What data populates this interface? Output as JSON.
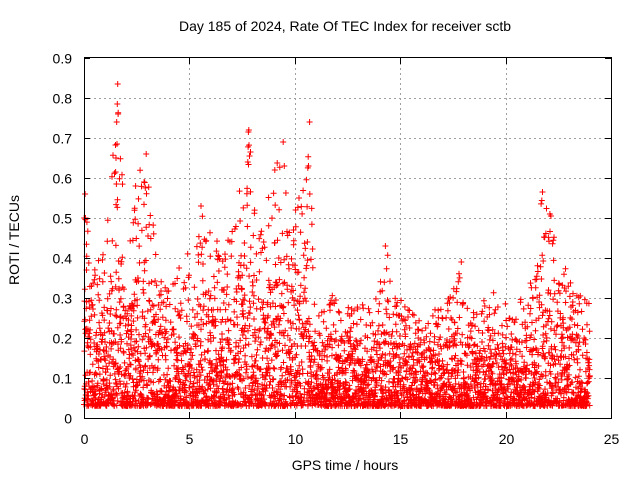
{
  "chart_data": {
    "type": "scatter",
    "title": "Day 185 of 2024, Rate Of TEC Index for receiver sctb",
    "xlabel": "GPS time / hours",
    "ylabel": "ROTI / TECUs",
    "xlim": [
      0,
      25
    ],
    "ylim": [
      0,
      0.9
    ],
    "x_ticks": [
      0,
      5,
      10,
      15,
      20,
      25
    ],
    "y_ticks": [
      0,
      0.1,
      0.2,
      0.3,
      0.4,
      0.5,
      0.6,
      0.7,
      0.8,
      0.9
    ],
    "x_tick_labels": [
      "0",
      "5",
      "10",
      "15",
      "20",
      "25"
    ],
    "y_tick_labels": [
      "0",
      "0.1",
      "0.2",
      "0.3",
      "0.4",
      "0.5",
      "0.6",
      "0.7",
      "0.8",
      "0.9"
    ],
    "grid": true,
    "marker": "+",
    "series_color": "#ff0000",
    "series": [
      {
        "name": "ROTI",
        "envelope": [
          [
            0.0,
            0.56
          ],
          [
            0.3,
            0.45
          ],
          [
            0.6,
            0.38
          ],
          [
            1.0,
            0.45
          ],
          [
            1.2,
            0.53
          ],
          [
            1.6,
            0.83
          ],
          [
            2.0,
            0.42
          ],
          [
            2.4,
            0.58
          ],
          [
            2.9,
            0.66
          ],
          [
            3.5,
            0.4
          ],
          [
            4.0,
            0.33
          ],
          [
            5.0,
            0.42
          ],
          [
            5.6,
            0.53
          ],
          [
            6.2,
            0.44
          ],
          [
            6.8,
            0.46
          ],
          [
            7.2,
            0.52
          ],
          [
            7.8,
            0.72
          ],
          [
            8.4,
            0.48
          ],
          [
            9.0,
            0.62
          ],
          [
            9.4,
            0.69
          ],
          [
            9.8,
            0.5
          ],
          [
            10.2,
            0.55
          ],
          [
            10.6,
            0.74
          ],
          [
            11.0,
            0.35
          ],
          [
            11.5,
            0.3
          ],
          [
            12.0,
            0.33
          ],
          [
            12.5,
            0.3
          ],
          [
            13.0,
            0.32
          ],
          [
            13.5,
            0.28
          ],
          [
            14.0,
            0.38
          ],
          [
            14.3,
            0.43
          ],
          [
            14.8,
            0.33
          ],
          [
            15.2,
            0.29
          ],
          [
            15.8,
            0.27
          ],
          [
            16.3,
            0.25
          ],
          [
            16.8,
            0.28
          ],
          [
            17.2,
            0.3
          ],
          [
            17.8,
            0.39
          ],
          [
            18.3,
            0.26
          ],
          [
            18.8,
            0.3
          ],
          [
            19.4,
            0.32
          ],
          [
            20.0,
            0.3
          ],
          [
            20.5,
            0.27
          ],
          [
            21.0,
            0.33
          ],
          [
            21.4,
            0.35
          ],
          [
            21.7,
            0.57
          ],
          [
            22.1,
            0.51
          ],
          [
            22.5,
            0.42
          ],
          [
            23.0,
            0.36
          ],
          [
            23.5,
            0.32
          ],
          [
            24.0,
            0.3
          ]
        ],
        "baseline": 0.03,
        "sample_step_hours": 0.0085
      }
    ],
    "outliers": [
      [
        1.6,
        0.835
      ],
      [
        1.58,
        0.785
      ],
      [
        1.62,
        0.76
      ],
      [
        1.55,
        0.74
      ],
      [
        1.52,
        0.65
      ],
      [
        1.5,
        0.615
      ],
      [
        2.95,
        0.66
      ],
      [
        7.82,
        0.72
      ],
      [
        7.8,
        0.715
      ],
      [
        7.9,
        0.665
      ],
      [
        7.85,
        0.655
      ],
      [
        9.45,
        0.69
      ],
      [
        9.5,
        0.63
      ],
      [
        10.7,
        0.74
      ],
      [
        10.65,
        0.63
      ],
      [
        14.3,
        0.43
      ],
      [
        17.9,
        0.39
      ],
      [
        21.75,
        0.565
      ],
      [
        22.1,
        0.51
      ],
      [
        22.15,
        0.505
      ],
      [
        0.05,
        0.56
      ],
      [
        0.07,
        0.5
      ],
      [
        2.45,
        0.58
      ],
      [
        2.85,
        0.59
      ],
      [
        5.55,
        0.53
      ],
      [
        9.05,
        0.62
      ],
      [
        10.2,
        0.55
      ],
      [
        0.12,
        0.37
      ]
    ]
  }
}
